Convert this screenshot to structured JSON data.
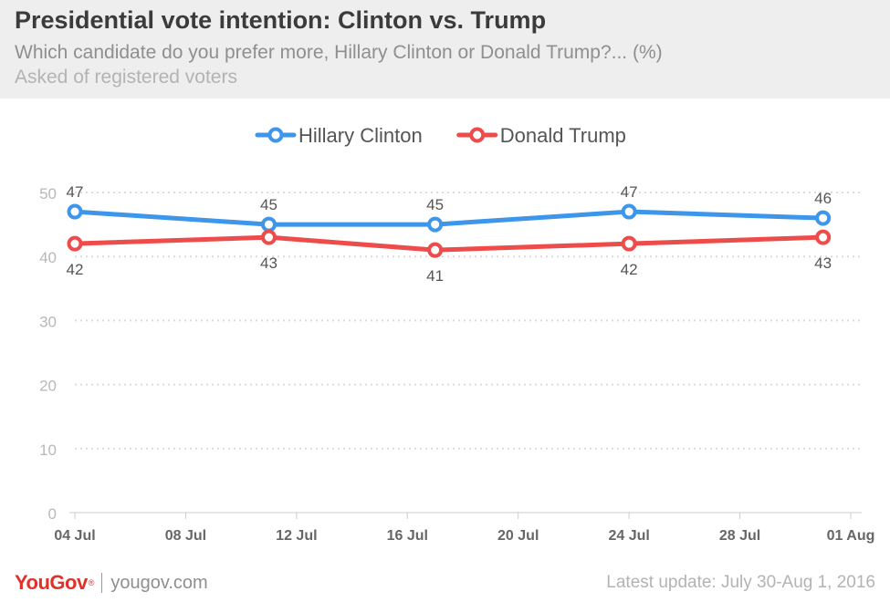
{
  "header": {
    "title": "Presidential vote intention: Clinton vs. Trump",
    "subtitle": "Which candidate do you prefer more, Hillary Clinton or Donald Trump?... (%)",
    "note": "Asked of registered voters"
  },
  "footer": {
    "logo": "YouGov",
    "logo_mark": "®",
    "site": "yougov.com",
    "latest_update": "Latest update: July 30-Aug 1, 2016"
  },
  "chart_data": {
    "type": "line",
    "x_ticks": [
      "04 Jul",
      "08 Jul",
      "12 Jul",
      "16 Jul",
      "20 Jul",
      "24 Jul",
      "28 Jul",
      "01 Aug"
    ],
    "x_tick_days": [
      0,
      4,
      8,
      12,
      16,
      20,
      24,
      28
    ],
    "y_ticks": [
      0,
      10,
      20,
      30,
      40,
      50
    ],
    "ylim": [
      0,
      50
    ],
    "grid": true,
    "legend": "top-center",
    "series": [
      {
        "name": "Hillary Clinton",
        "color": "#3d96ea",
        "label_position": "above",
        "points": [
          {
            "date": "04 Jul",
            "day": 0,
            "value": 47
          },
          {
            "date": "11 Jul",
            "day": 7,
            "value": 45
          },
          {
            "date": "17 Jul",
            "day": 13,
            "value": 45
          },
          {
            "date": "24 Jul",
            "day": 20,
            "value": 47
          },
          {
            "date": "31 Jul",
            "day": 27,
            "value": 46
          }
        ]
      },
      {
        "name": "Donald Trump",
        "color": "#ee4b4b",
        "label_position": "below",
        "points": [
          {
            "date": "04 Jul",
            "day": 0,
            "value": 42
          },
          {
            "date": "11 Jul",
            "day": 7,
            "value": 43
          },
          {
            "date": "17 Jul",
            "day": 13,
            "value": 41
          },
          {
            "date": "24 Jul",
            "day": 20,
            "value": 42
          },
          {
            "date": "31 Jul",
            "day": 27,
            "value": 43
          }
        ]
      }
    ]
  }
}
